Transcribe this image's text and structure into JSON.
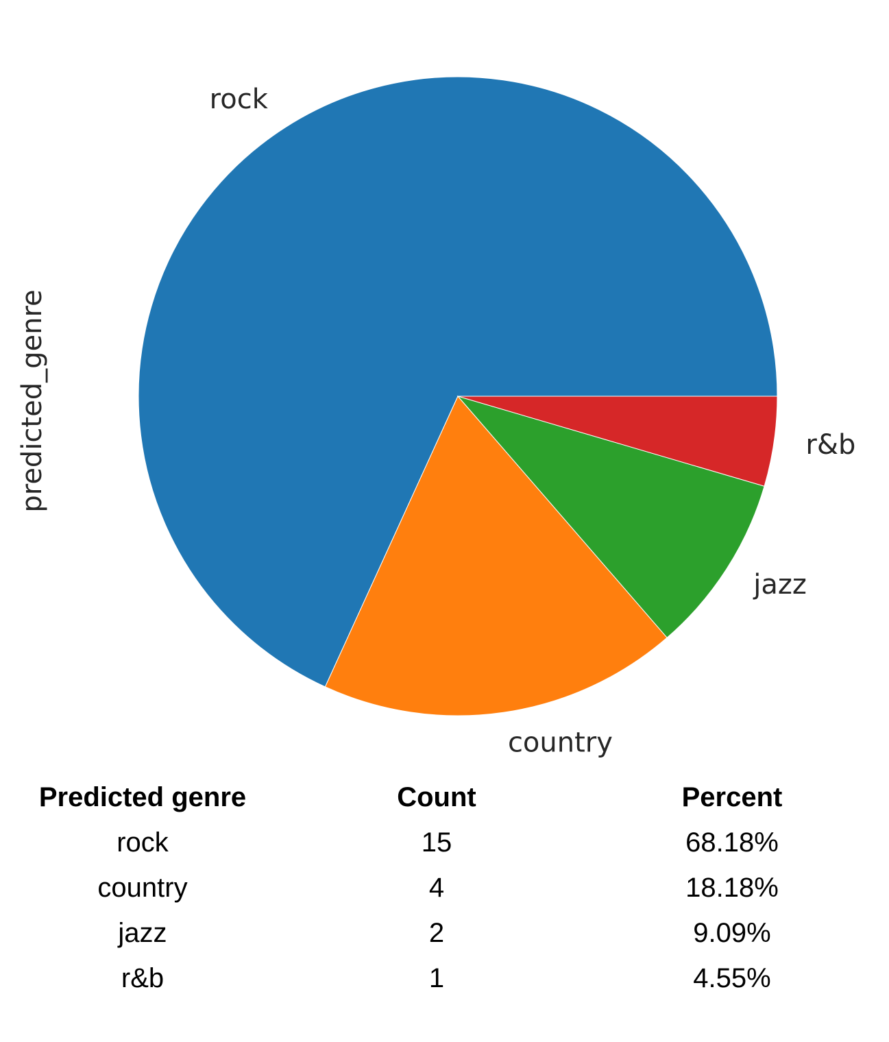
{
  "chart_data": {
    "type": "pie",
    "ylabel": "predicted_genre",
    "slices": [
      {
        "label": "rock",
        "value": 15,
        "color": "#2077b4"
      },
      {
        "label": "country",
        "value": 4,
        "color": "#ff7f0e"
      },
      {
        "label": "jazz",
        "value": 2,
        "color": "#2ca02c"
      },
      {
        "label": "r&b",
        "value": 1,
        "color": "#d62728"
      }
    ],
    "start": "3 o'clock",
    "direction": "counterclockwise"
  },
  "table": {
    "headers": [
      "Predicted genre",
      "Count",
      "Percent"
    ],
    "rows": [
      [
        "rock",
        "15",
        "68.18%"
      ],
      [
        "country",
        "4",
        "18.18%"
      ],
      [
        "jazz",
        "2",
        "9.09%"
      ],
      [
        "r&b",
        "1",
        "4.55%"
      ]
    ]
  }
}
